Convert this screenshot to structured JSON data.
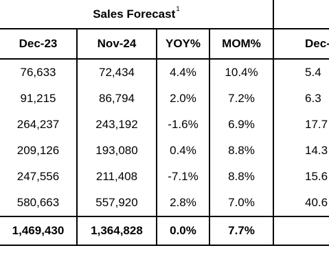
{
  "group": {
    "title": "Sales Forecast",
    "footnote": "1"
  },
  "columns": [
    "Dec-23",
    "Nov-24",
    "YOY%",
    "MOM%",
    "Dec-"
  ],
  "rows": [
    [
      "76,633",
      "72,434",
      "4.4%",
      "10.4%",
      "5.4"
    ],
    [
      "91,215",
      "86,794",
      "2.0%",
      "7.2%",
      "6.3"
    ],
    [
      "264,237",
      "243,192",
      "-1.6%",
      "6.9%",
      "17.7"
    ],
    [
      "209,126",
      "193,080",
      "0.4%",
      "8.8%",
      "14.3"
    ],
    [
      "247,556",
      "211,408",
      "-7.1%",
      "8.8%",
      "15.6"
    ],
    [
      "580,663",
      "557,920",
      "2.8%",
      "7.0%",
      "40.6"
    ]
  ],
  "total": [
    "1,469,430",
    "1,364,828",
    "0.0%",
    "7.7%",
    ""
  ]
}
